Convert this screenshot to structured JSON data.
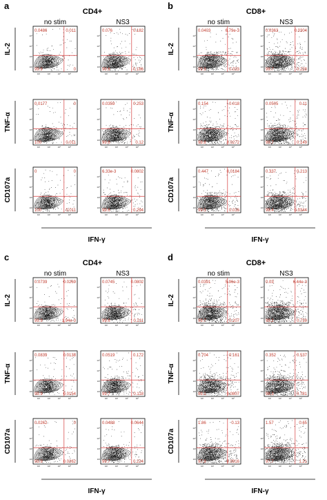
{
  "figure": {
    "panels": [
      {
        "letter": "a",
        "cell": "CD4+",
        "columns": [
          "no stim",
          "NS3"
        ],
        "rows": [
          {
            "label": "IL-2",
            "plots": [
              [
                "0.0486",
                "0.011",
                "99.9",
                "0"
              ],
              [
                "0.076",
                "0.182",
                "99.6",
                "0.186"
              ]
            ]
          },
          {
            "label": "TNF-α",
            "plots": [
              [
                "0.0177",
                "0",
                "100",
                "0.011"
              ],
              [
                "0.0359",
                "0.253",
                "99.6",
                "0.12"
              ]
            ]
          },
          {
            "label": "CD107a",
            "plots": [
              [
                "0",
                "0",
                "100",
                "0.011"
              ],
              [
                "6.33e-3",
                "0.0802",
                "99.6",
                "0.294"
              ]
            ]
          }
        ],
        "xlabel": "IFN-γ"
      },
      {
        "letter": "b",
        "cell": "CD8+",
        "columns": [
          "no stim",
          "NS3"
        ],
        "rows": [
          {
            "label": "IL-2",
            "plots": [
              [
                "0.0403",
                "6.79e-3",
                "99.9",
                "0.033"
              ],
              [
                "0.0363",
                "0.0304",
                "99.7",
                "0.228"
              ]
            ]
          },
          {
            "label": "TNF-α",
            "plots": [
              [
                "0.154",
                "0.018",
                "99.8",
                "0.0272"
              ],
              [
                "0.0505",
                "0.11",
                "99.7",
                "0.149"
              ]
            ]
          },
          {
            "label": "CD107a",
            "plots": [
              [
                "0.447",
                "0.0184",
                "99.5",
                "0.016"
              ],
              [
                "0.337",
                "0.213",
                "99.4",
                "0.0344"
              ]
            ]
          }
        ],
        "xlabel": "IFN-γ"
      },
      {
        "letter": "c",
        "cell": "CD4+",
        "columns": [
          "no stim",
          "NS3"
        ],
        "rows": [
          {
            "label": "IL-2",
            "plots": [
              [
                "0.0739",
                "0.0269",
                "99.9",
                "1.94e-3"
              ],
              [
                "0.0745",
                "0.0802",
                "99.6",
                "0.211"
              ]
            ]
          },
          {
            "label": "TNF-α",
            "plots": [
              [
                "0.0839",
                "0.0138",
                "99.9",
                "0.0154"
              ],
              [
                "0.0519",
                "0.172",
                "99.7",
                "0.118"
              ]
            ]
          },
          {
            "label": "CD107a",
            "plots": [
              [
                "0.0262",
                "0",
                "99.9",
                "0.0262"
              ],
              [
                "0.0488",
                "0.0644",
                "99.7",
                "0.224"
              ]
            ]
          }
        ],
        "xlabel": "IFN-γ"
      },
      {
        "letter": "d",
        "cell": "CD8+",
        "columns": [
          "no stim",
          "NS3"
        ],
        "rows": [
          {
            "label": "IL-2",
            "plots": [
              [
                "0.0391",
                "5.96e-3",
                "99.7",
                "0.207"
              ],
              [
                "0.03",
                "6.44e-3",
                "99.2",
                "0.739"
              ]
            ]
          },
          {
            "label": "TNF-α",
            "plots": [
              [
                "0.704",
                "0.161",
                "99.1",
                "0.0807"
              ],
              [
                "0.352",
                "0.537",
                "98.3",
                "0.781"
              ]
            ]
          },
          {
            "label": "CD107a",
            "plots": [
              [
                "1.86",
                "0.13",
                "97.9",
                "0.0916"
              ],
              [
                "1.57",
                "0.65",
                "97.7",
                "1.21"
              ]
            ]
          }
        ],
        "xlabel": "IFN-γ"
      }
    ],
    "axis_ticks": [
      "10²",
      "10³",
      "10⁴",
      "10⁵"
    ],
    "colors": {
      "gate": "#d43a3a",
      "quadrant_text": "#c0392b",
      "dots": "#111111"
    }
  }
}
